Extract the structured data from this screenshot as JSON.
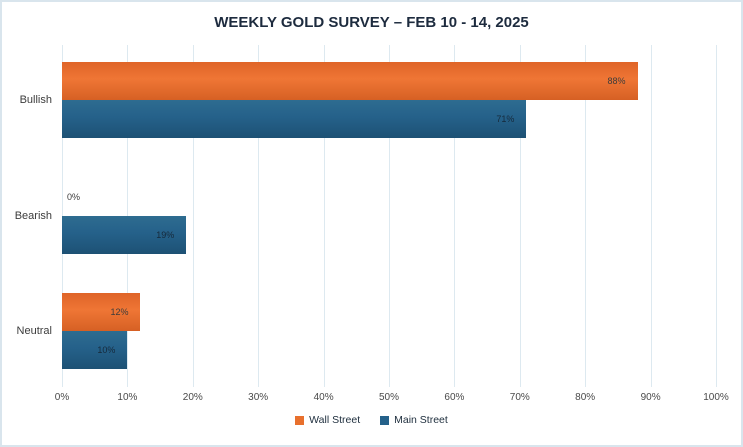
{
  "chart_data": {
    "type": "bar",
    "orientation": "horizontal",
    "title": "WEEKLY GOLD SURVEY – FEB 10 - 14, 2025",
    "categories": [
      "Bullish",
      "Bearish",
      "Neutral"
    ],
    "series": [
      {
        "name": "Wall Street",
        "color": "#E8702D",
        "gradient": [
          "#df6428",
          "#ef7635",
          "#d66024"
        ],
        "label_color": "#3b3b3b",
        "values": [
          88,
          0,
          12
        ],
        "labels": [
          "88%",
          "0%",
          "12%"
        ]
      },
      {
        "name": "Main Street",
        "color": "#25618A",
        "gradient": [
          "#2e6c90",
          "#25618a",
          "#1d5174"
        ],
        "label_color": "#16293a",
        "values": [
          71,
          19,
          10
        ],
        "labels": [
          "71%",
          "19%",
          "10%"
        ]
      }
    ],
    "xlim": [
      0,
      100
    ],
    "x_ticks": [
      {
        "value": 0,
        "label": "0%"
      },
      {
        "value": 10,
        "label": "10%"
      },
      {
        "value": 20,
        "label": "20%"
      },
      {
        "value": 30,
        "label": "30%"
      },
      {
        "value": 40,
        "label": "40%"
      },
      {
        "value": 50,
        "label": "50%"
      },
      {
        "value": 60,
        "label": "60%"
      },
      {
        "value": 70,
        "label": "70%"
      },
      {
        "value": 80,
        "label": "80%"
      },
      {
        "value": 90,
        "label": "90%"
      },
      {
        "value": 100,
        "label": "100%"
      }
    ],
    "grid": "vertical",
    "legend_position": "bottom"
  },
  "colors": {
    "background": "#ffffff",
    "frame_border": "#d9e5ed",
    "gridline": "#dde9f0",
    "title_text": "#1d2b3e",
    "category_text": "#3c3c3c",
    "tick_text": "#4a4a4a",
    "legend_text": "#20303f"
  }
}
